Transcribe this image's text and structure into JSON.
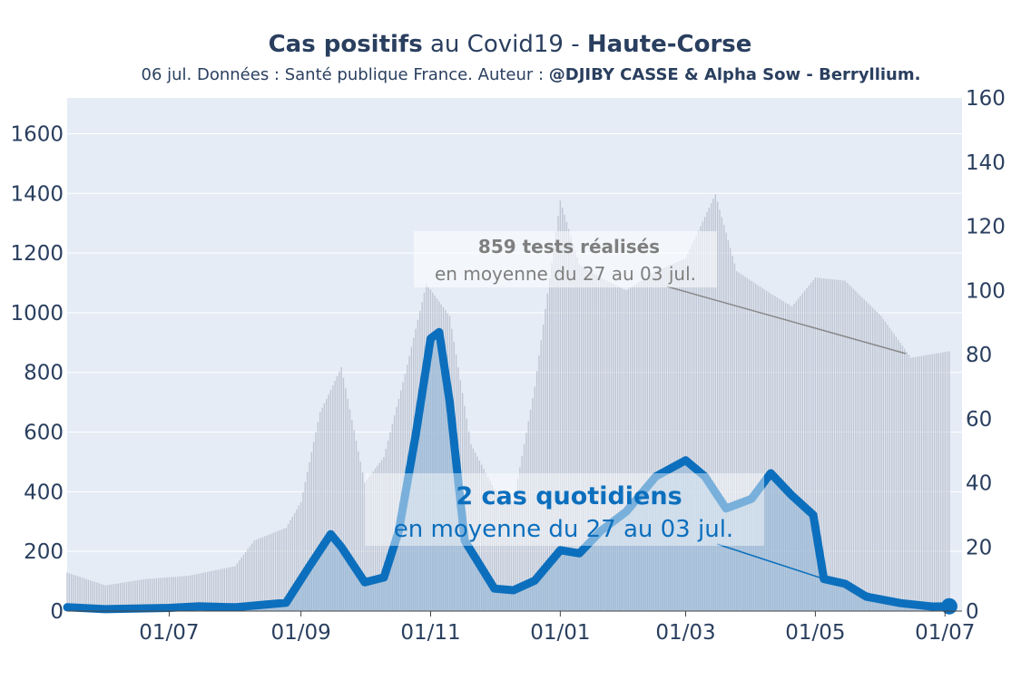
{
  "title": {
    "part1": "Cas positifs",
    "part2": " au Covid19 - ",
    "part3": "Haute-Corse"
  },
  "subtitle": {
    "text": "06 jul. Données : Santé publique France. Auteur : ",
    "author": "@DJIBY CASSE & Alpha Sow - Berryllium."
  },
  "annotations": {
    "tests": {
      "bold": "859 tests réalisés",
      "line2": "en moyenne du 27 au 03 jul."
    },
    "cases": {
      "bold": "2 cas quotidiens",
      "line2": "en moyenne du 27 au 03 jul."
    }
  },
  "colors": {
    "plot_bg": "#e5ecf6",
    "grid": "#ffffff",
    "tests_bar": "#b8c0cc",
    "cases_line": "#0c6fbd",
    "cases_fill": "#8db3d6",
    "text": "#2a3f5f",
    "annot_tests": "#7f7f7f",
    "annot_cases": "#0c6fbd"
  },
  "chart_data": {
    "type": "bar",
    "x_range": [
      "2020-05-14",
      "2021-07-09"
    ],
    "x_tick_labels": [
      "01/07",
      "01/09",
      "01/11",
      "01/01",
      "01/03",
      "01/05",
      "01/07"
    ],
    "y_left_range": [
      0,
      1720
    ],
    "y_left_ticks": [
      0,
      200,
      400,
      600,
      800,
      1000,
      1200,
      1400,
      1600
    ],
    "y_right_range": [
      0,
      160
    ],
    "y_right_ticks": [
      0,
      20,
      40,
      60,
      80,
      100,
      120,
      140,
      160
    ],
    "series": [
      {
        "name": "tests",
        "axis": "right",
        "style": "bars",
        "points": [
          [
            "2020-05-14",
            12
          ],
          [
            "2020-06-01",
            8
          ],
          [
            "2020-06-20",
            10
          ],
          [
            "2020-07-10",
            11
          ],
          [
            "2020-08-01",
            14
          ],
          [
            "2020-08-10",
            22
          ],
          [
            "2020-08-25",
            26
          ],
          [
            "2020-09-01",
            34
          ],
          [
            "2020-09-10",
            62
          ],
          [
            "2020-09-20",
            76
          ],
          [
            "2020-10-01",
            40
          ],
          [
            "2020-10-10",
            48
          ],
          [
            "2020-10-20",
            74
          ],
          [
            "2020-10-30",
            102
          ],
          [
            "2020-11-10",
            92
          ],
          [
            "2020-11-20",
            52
          ],
          [
            "2020-12-01",
            38
          ],
          [
            "2020-12-10",
            34
          ],
          [
            "2020-12-20",
            70
          ],
          [
            "2021-01-01",
            128
          ],
          [
            "2021-01-10",
            108
          ],
          [
            "2021-01-20",
            104
          ],
          [
            "2021-02-01",
            100
          ],
          [
            "2021-02-15",
            106
          ],
          [
            "2021-03-01",
            110
          ],
          [
            "2021-03-15",
            130
          ],
          [
            "2021-03-25",
            106
          ],
          [
            "2021-04-10",
            99
          ],
          [
            "2021-04-20",
            95
          ],
          [
            "2021-05-01",
            104
          ],
          [
            "2021-05-15",
            103
          ],
          [
            "2021-06-01",
            92
          ],
          [
            "2021-06-15",
            79
          ],
          [
            "2021-07-03",
            81
          ]
        ]
      },
      {
        "name": "cas",
        "axis": "right",
        "style": "line_area",
        "points": [
          [
            "2020-05-14",
            1.2
          ],
          [
            "2020-06-01",
            0.6
          ],
          [
            "2020-07-01",
            1.0
          ],
          [
            "2020-07-15",
            1.5
          ],
          [
            "2020-08-01",
            1.2
          ],
          [
            "2020-08-15",
            2.0
          ],
          [
            "2020-08-25",
            2.6
          ],
          [
            "2020-09-05",
            14
          ],
          [
            "2020-09-15",
            24
          ],
          [
            "2020-09-20",
            20
          ],
          [
            "2020-10-01",
            9
          ],
          [
            "2020-10-10",
            10.5
          ],
          [
            "2020-10-17",
            25
          ],
          [
            "2020-10-25",
            55
          ],
          [
            "2020-11-01",
            85
          ],
          [
            "2020-11-05",
            87
          ],
          [
            "2020-11-10",
            65
          ],
          [
            "2020-11-17",
            22
          ],
          [
            "2020-12-01",
            7
          ],
          [
            "2020-12-10",
            6.5
          ],
          [
            "2020-12-20",
            9.5
          ],
          [
            "2021-01-01",
            19
          ],
          [
            "2021-01-10",
            18
          ],
          [
            "2021-01-20",
            25
          ],
          [
            "2021-02-01",
            31
          ],
          [
            "2021-02-15",
            42
          ],
          [
            "2021-03-01",
            47
          ],
          [
            "2021-03-10",
            42
          ],
          [
            "2021-03-20",
            32
          ],
          [
            "2021-04-01",
            35
          ],
          [
            "2021-04-10",
            43
          ],
          [
            "2021-04-20",
            36
          ],
          [
            "2021-04-30",
            30
          ],
          [
            "2021-05-05",
            10
          ],
          [
            "2021-05-15",
            8.5
          ],
          [
            "2021-05-25",
            4.5
          ],
          [
            "2021-06-10",
            2.5
          ],
          [
            "2021-06-25",
            1.4
          ],
          [
            "2021-07-03",
            1.5
          ]
        ]
      }
    ],
    "last_point": [
      "2021-07-03",
      1.5
    ]
  }
}
